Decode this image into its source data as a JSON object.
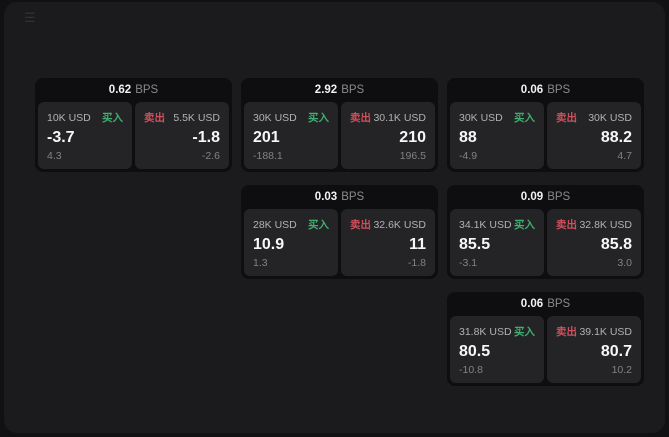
{
  "app": {
    "menu_icon": "☰"
  },
  "labels": {
    "buy": "买入",
    "sell": "卖出",
    "bps": "BPS"
  },
  "colors": {
    "buy": "#3fae6e",
    "sell": "#cf4f5c",
    "panel_bg": "#1b1b1d",
    "card_bg": "#0e0e10",
    "subpanel_bg": "#242426"
  },
  "cards": [
    {
      "bps": "0.62",
      "row": 1,
      "col": 1,
      "buy": {
        "amount": "10K USD",
        "value": "-3.7",
        "delta": "4.3"
      },
      "sell": {
        "amount": "5.5K USD",
        "value": "-1.8",
        "delta": "-2.6"
      }
    },
    {
      "bps": "2.92",
      "row": 1,
      "col": 2,
      "buy": {
        "amount": "30K USD",
        "value": "201",
        "delta": "-188.1"
      },
      "sell": {
        "amount": "30.1K USD",
        "value": "210",
        "delta": "196.5"
      }
    },
    {
      "bps": "0.06",
      "row": 1,
      "col": 3,
      "buy": {
        "amount": "30K USD",
        "value": "88",
        "delta": "-4.9"
      },
      "sell": {
        "amount": "30K USD",
        "value": "88.2",
        "delta": "4.7"
      }
    },
    {
      "bps": "0.03",
      "row": 2,
      "col": 2,
      "buy": {
        "amount": "28K USD",
        "value": "10.9",
        "delta": "1.3"
      },
      "sell": {
        "amount": "32.6K USD",
        "value": "11",
        "delta": "-1.8"
      }
    },
    {
      "bps": "0.09",
      "row": 2,
      "col": 3,
      "buy": {
        "amount": "34.1K USD",
        "value": "85.5",
        "delta": "-3.1"
      },
      "sell": {
        "amount": "32.8K USD",
        "value": "85.8",
        "delta": "3.0"
      }
    },
    {
      "bps": "0.06",
      "row": 3,
      "col": 3,
      "buy": {
        "amount": "31.8K USD",
        "value": "80.5",
        "delta": "-10.8"
      },
      "sell": {
        "amount": "39.1K USD",
        "value": "80.7",
        "delta": "10.2"
      }
    }
  ]
}
